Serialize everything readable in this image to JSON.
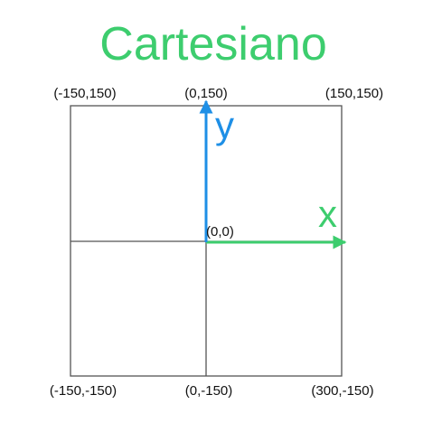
{
  "title": "Cartesiano",
  "labels": {
    "top_left": "(-150,150)",
    "top_center": "(0,150)",
    "top_right": "(150,150)",
    "origin": "(0,0)",
    "bottom_left": "(-150,-150)",
    "bottom_center": "(0,-150)",
    "bottom_right": "(300,-150)"
  },
  "axes": {
    "x_label": "x",
    "y_label": "y"
  },
  "colors": {
    "title": "#3dcd6e",
    "x_axis": "#3dcd6e",
    "y_axis": "#1e8fe6",
    "frame": "#555555",
    "label_text": "#111111"
  }
}
